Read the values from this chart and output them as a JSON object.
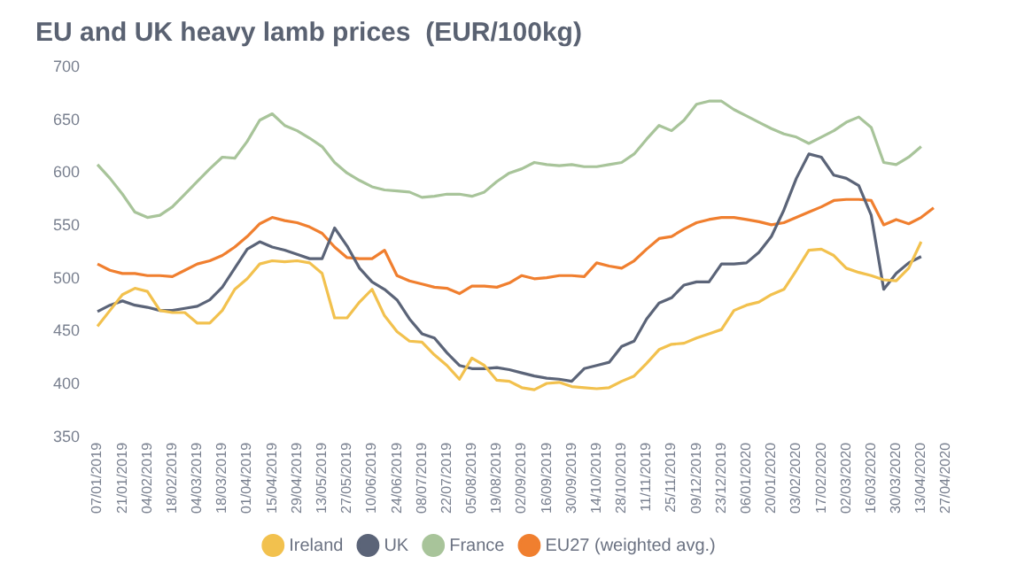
{
  "chart_data": {
    "type": "line",
    "title": "EU and UK heavy lamb prices  (EUR/100kg)",
    "categories": [
      "07/01/2019",
      null,
      "21/01/2019",
      null,
      "04/02/2019",
      null,
      "18/02/2019",
      null,
      "04/03/2019",
      null,
      "18/03/2019",
      null,
      "01/04/2019",
      null,
      "15/04/2019",
      null,
      "29/04/2019",
      null,
      "13/05/2019",
      null,
      "27/05/2019",
      null,
      "10/06/2019",
      null,
      "24/06/2019",
      null,
      "08/07/2019",
      null,
      "22/07/2019",
      null,
      "05/08/2019",
      null,
      "19/08/2019",
      null,
      "02/09/2019",
      null,
      "16/09/2019",
      null,
      "30/09/2019",
      null,
      "14/10/2019",
      null,
      "28/10/2019",
      null,
      "11/11/2019",
      null,
      "25/11/2019",
      null,
      "09/12/2019",
      null,
      "23/12/2019",
      null,
      "06/01/2020",
      null,
      "20/01/2020",
      null,
      "03/02/2020",
      null,
      "17/02/2020",
      null,
      "02/03/2020",
      null,
      "16/03/2020",
      null,
      "30/03/2020",
      null,
      "13/04/2020",
      null,
      "27/04/2020"
    ],
    "series": [
      {
        "name": "Ireland",
        "color": "#f2c14e",
        "values": [
          455,
          470,
          485,
          491,
          488,
          470,
          468,
          468,
          458,
          458,
          470,
          490,
          500,
          514,
          517,
          516,
          517,
          515,
          505,
          463,
          463,
          478,
          490,
          465,
          450,
          441,
          440,
          428,
          418,
          405,
          425,
          418,
          404,
          403,
          397,
          395,
          401,
          402,
          398,
          397,
          396,
          397,
          403,
          408,
          420,
          433,
          438,
          439,
          444,
          448,
          452,
          470,
          475,
          478,
          485,
          490,
          508,
          527,
          528,
          522,
          510,
          506,
          503,
          499,
          498,
          510,
          535,
          null,
          null
        ]
      },
      {
        "name": "UK",
        "color": "#5b6478",
        "values": [
          469,
          475,
          479,
          475,
          473,
          470,
          470,
          472,
          474,
          480,
          492,
          510,
          528,
          535,
          530,
          527,
          523,
          519,
          519,
          548,
          531,
          510,
          497,
          490,
          480,
          462,
          448,
          444,
          430,
          418,
          415,
          415,
          416,
          414,
          411,
          408,
          406,
          405,
          403,
          415,
          418,
          421,
          436,
          441,
          462,
          477,
          482,
          494,
          497,
          497,
          514,
          514,
          515,
          525,
          540,
          565,
          595,
          618,
          615,
          598,
          595,
          588,
          560,
          490,
          505,
          515,
          521,
          null,
          null
        ]
      },
      {
        "name": "France",
        "color": "#a8c49a",
        "values": [
          608,
          595,
          580,
          563,
          558,
          560,
          568,
          580,
          592,
          604,
          615,
          614,
          630,
          650,
          656,
          645,
          640,
          633,
          625,
          610,
          600,
          593,
          587,
          584,
          583,
          582,
          577,
          578,
          580,
          580,
          578,
          582,
          592,
          600,
          604,
          610,
          608,
          607,
          608,
          606,
          606,
          608,
          610,
          618,
          632,
          645,
          640,
          650,
          665,
          668,
          668,
          660,
          654,
          648,
          642,
          637,
          634,
          628,
          634,
          640,
          648,
          653,
          643,
          610,
          608,
          615,
          625,
          null,
          null
        ]
      },
      {
        "name": "EU27 (weighted avg.)",
        "color": "#f07f2f",
        "values": [
          514,
          508,
          505,
          505,
          503,
          503,
          502,
          508,
          514,
          517,
          522,
          530,
          540,
          552,
          558,
          555,
          553,
          549,
          543,
          530,
          520,
          519,
          519,
          527,
          503,
          498,
          495,
          492,
          491,
          486,
          493,
          493,
          492,
          496,
          503,
          500,
          501,
          503,
          503,
          502,
          515,
          512,
          510,
          517,
          528,
          538,
          540,
          547,
          553,
          556,
          558,
          558,
          556,
          554,
          551,
          553,
          558,
          563,
          568,
          574,
          575,
          575,
          574,
          551,
          556,
          552,
          558,
          567,
          null
        ]
      }
    ],
    "ylim": [
      350,
      700
    ],
    "yticks": [
      350,
      400,
      450,
      500,
      550,
      600,
      650,
      700
    ],
    "grid": false,
    "legend": "bottom",
    "marker": "none",
    "line_style": "solid"
  }
}
